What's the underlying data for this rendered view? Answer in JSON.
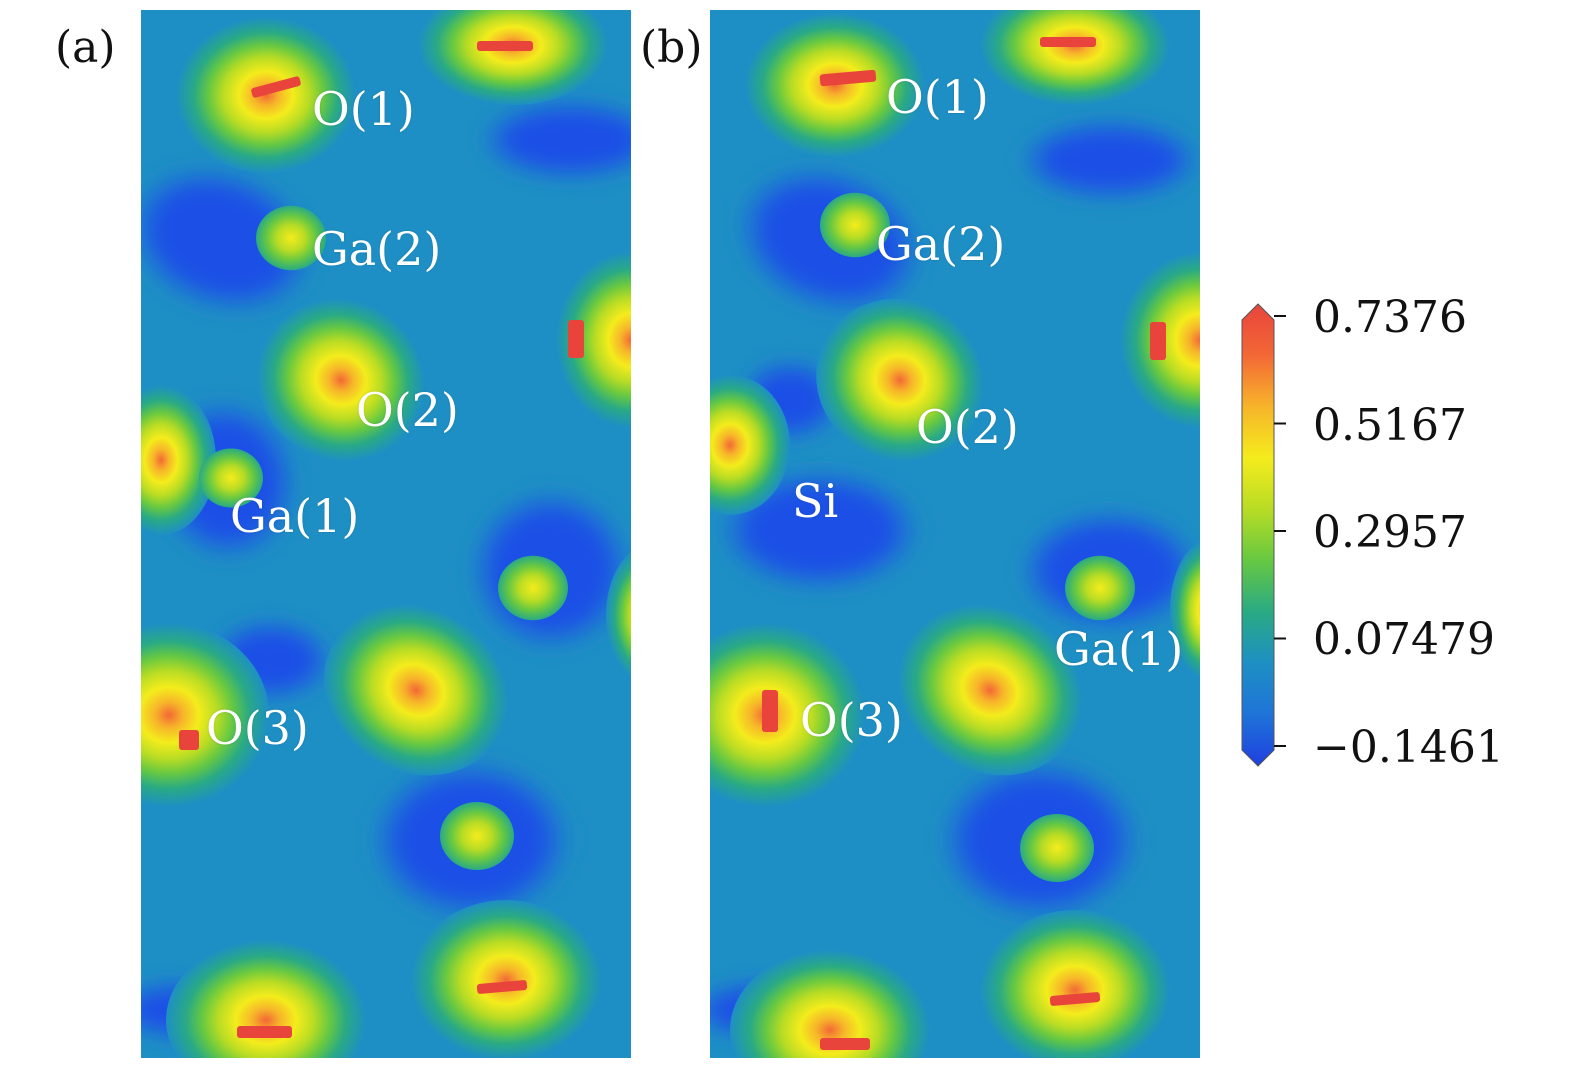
{
  "chart_data": [
    {
      "type": "heatmap",
      "panel_label": "(a)",
      "atom_labels": [
        "O(1)",
        "Ga(2)",
        "O(2)",
        "Ga(1)",
        "O(3)"
      ],
      "colorbar": {
        "ticks": [
          "0.7376",
          "0.5167",
          "0.2957",
          "0.07479",
          "−0.1461"
        ],
        "range": [
          -0.1461,
          0.7376
        ],
        "colormap": [
          "#1f3fe0",
          "#1e73d8",
          "#1e8fc4",
          "#2aaa84",
          "#66c842",
          "#b8dc24",
          "#f4ec1c",
          "#f7b42a",
          "#f36836",
          "#e8443c"
        ]
      }
    },
    {
      "type": "heatmap",
      "panel_label": "(b)",
      "atom_labels": [
        "O(1)",
        "Ga(2)",
        "O(2)",
        "Si",
        "Ga(1)",
        "O(3)"
      ]
    }
  ],
  "colors": {
    "background": "#1e8fc4",
    "low": "#1f50e6",
    "high": "#e8443c"
  }
}
